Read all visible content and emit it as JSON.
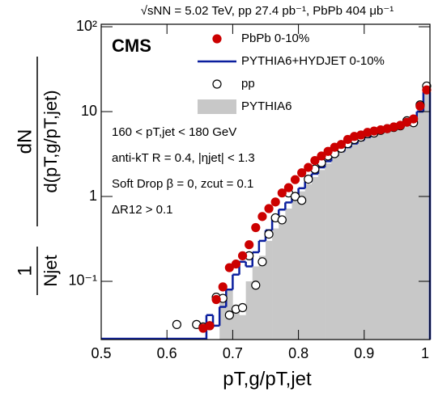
{
  "chart_data": {
    "type": "histogram",
    "title": "√sNN = 5.02 TeV, pp 27.4 pb⁻¹, PbPb 404 μb⁻¹",
    "experiment": "CMS",
    "annotations": [
      "160 < pT,jet < 180 GeV",
      "anti-kT R = 0.4, |ηjet| < 1.3",
      "Soft Drop β = 0, zcut = 0.1",
      "ΔR12 > 0.1"
    ],
    "x_label": "pT,g/pT,jet",
    "y_label": {
      "numerator": [
        "1",
        "dN"
      ],
      "denominator": [
        "Njet",
        "d(pT,g/pT,jet)"
      ]
    },
    "xlim": [
      0.5,
      1
    ],
    "xticks": [
      0.5,
      0.6,
      0.7,
      0.8,
      0.9,
      1
    ],
    "ylim": [
      0.0206,
      107
    ],
    "log_y": true,
    "yticks": [
      {
        "value": 0.1,
        "label": "10⁻¹"
      },
      1,
      10,
      {
        "value": 100,
        "label": "10²"
      }
    ],
    "series": [
      {
        "name": "PbPb 0-10%",
        "kind": "filled-points",
        "color": "#cc0000",
        "x": [
          0.655,
          0.665,
          0.675,
          0.685,
          0.695,
          0.705,
          0.715,
          0.725,
          0.735,
          0.745,
          0.755,
          0.765,
          0.775,
          0.785,
          0.795,
          0.805,
          0.815,
          0.825,
          0.835,
          0.845,
          0.855,
          0.865,
          0.875,
          0.885,
          0.895,
          0.905,
          0.915,
          0.925,
          0.935,
          0.945,
          0.955,
          0.965,
          0.975,
          0.985,
          0.995
        ],
        "values": [
          0.028,
          0.03,
          0.061,
          0.086,
          0.145,
          0.16,
          0.2,
          0.27,
          0.43,
          0.58,
          0.72,
          0.86,
          1.1,
          1.27,
          1.58,
          1.9,
          2.2,
          2.65,
          3.0,
          3.4,
          3.8,
          4.1,
          4.7,
          5.1,
          5.3,
          5.7,
          5.9,
          6.1,
          6.3,
          6.6,
          6.9,
          7.5,
          8.2,
          11.6,
          18
        ]
      },
      {
        "name": "PYTHIA6+HYDJET 0-10%",
        "kind": "step",
        "color": "#0a1e9e",
        "bins": [
          0.66,
          0.67,
          0.68,
          0.69,
          0.7,
          0.71,
          0.72,
          0.73,
          0.74,
          0.75,
          0.76,
          0.77,
          0.78,
          0.79,
          0.8,
          0.81,
          0.82,
          0.83,
          0.84,
          0.85,
          0.86,
          0.87,
          0.88,
          0.89,
          0.9,
          0.91,
          0.92,
          0.93,
          0.94,
          0.95,
          0.96,
          0.97,
          0.98,
          0.99,
          1.0
        ],
        "values": [
          0.04,
          0.03,
          0.05,
          0.08,
          0.12,
          0.17,
          0.15,
          0.22,
          0.3,
          0.4,
          0.55,
          0.7,
          0.85,
          1.05,
          1.25,
          1.5,
          1.85,
          2.2,
          2.6,
          3.0,
          3.4,
          3.8,
          4.2,
          4.6,
          5.0,
          5.4,
          5.7,
          6.0,
          6.3,
          6.6,
          7.0,
          7.6,
          10,
          17
        ]
      },
      {
        "name": "pp",
        "kind": "open-points",
        "color": "#000000",
        "x": [
          0.615,
          0.645,
          0.655,
          0.665,
          0.675,
          0.685,
          0.695,
          0.705,
          0.715,
          0.725,
          0.735,
          0.745,
          0.755,
          0.765,
          0.775,
          0.785,
          0.795,
          0.805,
          0.815,
          0.825,
          0.835,
          0.845,
          0.855,
          0.865,
          0.875,
          0.885,
          0.895,
          0.905,
          0.915,
          0.925,
          0.935,
          0.945,
          0.955,
          0.965,
          0.975,
          0.985,
          0.995
        ],
        "values": [
          0.031,
          0.031,
          0.029,
          0.03,
          0.065,
          0.063,
          0.04,
          0.047,
          0.049,
          0.2,
          0.09,
          0.17,
          0.36,
          0.56,
          0.53,
          1.1,
          1.0,
          0.9,
          1.6,
          2.1,
          2.5,
          3.0,
          3.2,
          3.7,
          4.2,
          4.7,
          5.0,
          5.5,
          5.6,
          6.0,
          6.3,
          6.5,
          6.8,
          7.8,
          7.4,
          12,
          20
        ]
      },
      {
        "name": "PYTHIA6",
        "kind": "fill",
        "color": "#c8c8c8",
        "bins": [
          0.68,
          0.69,
          0.7,
          0.71,
          0.72,
          0.73,
          0.74,
          0.75,
          0.76,
          0.77,
          0.78,
          0.79,
          0.8,
          0.81,
          0.82,
          0.83,
          0.84,
          0.85,
          0.86,
          0.87,
          0.88,
          0.89,
          0.9,
          0.91,
          0.92,
          0.93,
          0.94,
          0.95,
          0.96,
          0.97,
          0.98,
          0.99,
          1.0
        ],
        "values": [
          0.06,
          0.08,
          0.05,
          0.04,
          0.1,
          0.15,
          0.2,
          0.3,
          0.42,
          0.55,
          0.72,
          0.92,
          1.15,
          1.4,
          1.7,
          2.05,
          2.45,
          2.9,
          3.3,
          3.7,
          4.1,
          4.5,
          4.9,
          5.2,
          5.5,
          5.8,
          6.1,
          6.5,
          7.0,
          7.8,
          10.5,
          20
        ]
      }
    ]
  }
}
